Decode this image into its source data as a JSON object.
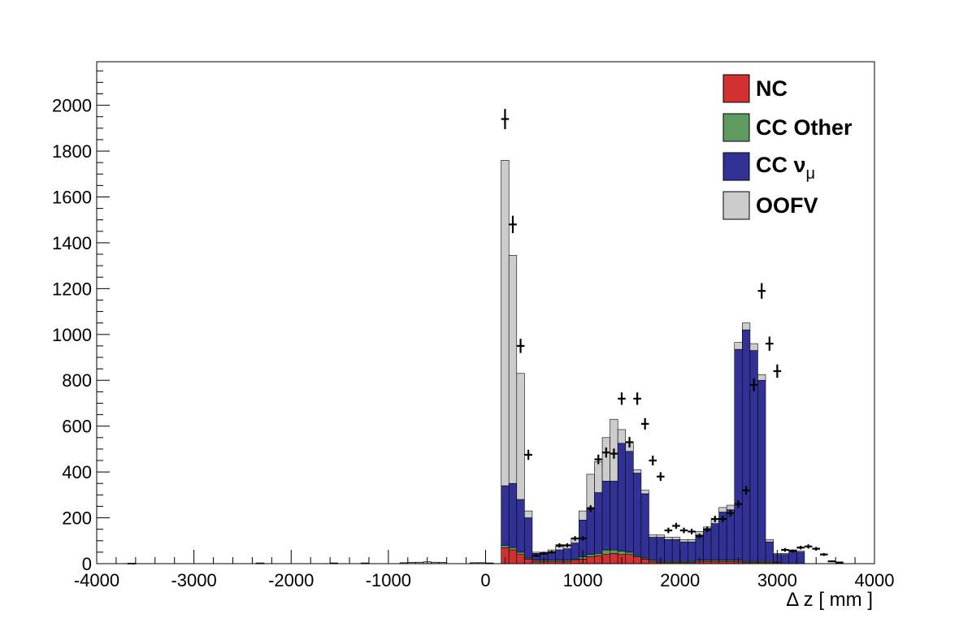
{
  "chart_data": {
    "type": "stacked-histogram",
    "title": "",
    "xlabel": "Δ z  [ mm ]",
    "ylabel": "",
    "xlim": [
      -4000,
      4000
    ],
    "ylim": [
      0,
      2190
    ],
    "x_ticks": [
      -4000,
      -3000,
      -2000,
      -1000,
      0,
      1000,
      2000,
      3000,
      4000
    ],
    "y_ticks": [
      0,
      200,
      400,
      600,
      800,
      1000,
      1200,
      1400,
      1600,
      1800,
      2000
    ],
    "bin_width": 80,
    "bin_start": 160,
    "grid": false,
    "legend_position": "top-right",
    "series": [
      {
        "name": "NC",
        "color": "#d23131",
        "values": [
          70,
          60,
          40,
          20,
          10,
          10,
          10,
          10,
          10,
          15,
          20,
          30,
          35,
          40,
          45,
          40,
          40,
          30,
          20,
          10,
          5,
          5,
          5,
          5,
          5,
          10,
          10,
          10,
          10,
          10,
          10,
          5,
          5,
          5,
          5,
          5,
          0,
          0,
          0
        ]
      },
      {
        "name": "CC Other",
        "color": "#5f9a61",
        "values": [
          10,
          10,
          10,
          5,
          5,
          5,
          5,
          5,
          5,
          5,
          10,
          10,
          10,
          20,
          15,
          15,
          10,
          5,
          5,
          5,
          5,
          5,
          5,
          5,
          5,
          5,
          5,
          5,
          5,
          5,
          5,
          5,
          5,
          5,
          5,
          0,
          0,
          0,
          0
        ]
      },
      {
        "name": "CC ν_μ",
        "legend_main": "CC ν",
        "legend_sub": "μ",
        "color": "#323296",
        "values": [
          260,
          280,
          230,
          175,
          30,
          25,
          35,
          45,
          50,
          70,
          160,
          205,
          265,
          300,
          300,
          470,
          440,
          360,
          280,
          100,
          105,
          95,
          95,
          85,
          85,
          110,
          130,
          160,
          210,
          220,
          920,
          1010,
          920,
          790,
          85,
          35,
          40,
          55,
          50
        ]
      },
      {
        "name": "OOFV",
        "color": "#cccccc",
        "values": [
          1420,
          995,
          550,
          30,
          5,
          10,
          10,
          15,
          15,
          20,
          40,
          145,
          135,
          190,
          270,
          60,
          40,
          15,
          15,
          10,
          10,
          10,
          10,
          10,
          10,
          15,
          15,
          20,
          20,
          20,
          30,
          30,
          30,
          25,
          10,
          5,
          5,
          5,
          5
        ]
      }
    ],
    "low_x_bins": {
      "x_centers": [
        -3640,
        -2320,
        -1560,
        -1240,
        -840,
        -760,
        -680,
        -600,
        -520,
        -440,
        -120,
        -40,
        40
      ],
      "values": [
        2,
        3,
        3,
        3,
        4,
        5,
        6,
        8,
        6,
        5,
        4,
        4,
        3
      ]
    },
    "data_points": {
      "name": "Data",
      "x": [
        200,
        280,
        360,
        440,
        520,
        600,
        680,
        760,
        840,
        920,
        1000,
        1080,
        1160,
        1240,
        1320,
        1400,
        1480,
        1560,
        1640,
        1720,
        1800,
        1880,
        1960,
        2040,
        2120,
        2200,
        2280,
        2360,
        2440,
        2520,
        2600,
        2680,
        2760,
        2840,
        2920,
        3000,
        3080,
        3160,
        3240,
        3320,
        3400,
        3480,
        3560,
        3640
      ],
      "y": [
        1940,
        1480,
        950,
        475,
        35,
        45,
        50,
        80,
        80,
        110,
        110,
        240,
        455,
        485,
        480,
        720,
        530,
        720,
        610,
        450,
        380,
        145,
        165,
        145,
        140,
        120,
        150,
        195,
        195,
        220,
        260,
        320,
        780,
        1190,
        960,
        840,
        60,
        55,
        70,
        75,
        65,
        40,
        10,
        5
      ],
      "yerr": [
        44,
        38,
        31,
        22,
        6,
        7,
        7,
        9,
        9,
        10,
        10,
        15,
        21,
        22,
        22,
        27,
        23,
        27,
        25,
        21,
        19,
        12,
        13,
        12,
        12,
        11,
        12,
        14,
        14,
        15,
        16,
        18,
        28,
        34,
        31,
        29,
        8,
        7,
        8,
        9,
        8,
        6,
        3,
        2
      ]
    }
  }
}
